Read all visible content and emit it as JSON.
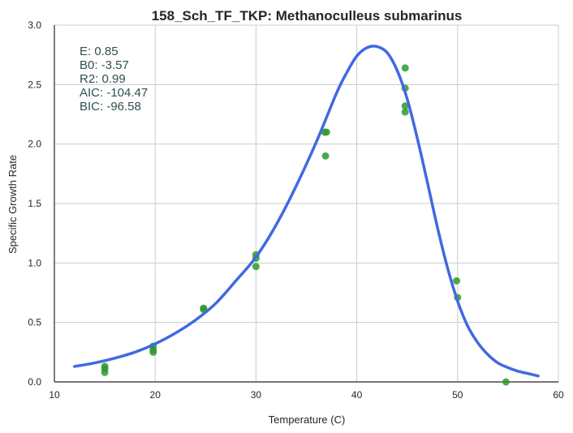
{
  "chart_data": {
    "type": "scatter",
    "title": "158_Sch_TF_TKP: Methanoculleus submarinus",
    "xlabel": "Temperature (C)",
    "ylabel": "Specific Growth Rate",
    "xlim": [
      10,
      60
    ],
    "ylim": [
      0,
      3.0
    ],
    "xticks": [
      10,
      20,
      30,
      40,
      50,
      60
    ],
    "xtick_labels": [
      "10",
      "20",
      "30",
      "40",
      "50",
      "60"
    ],
    "yticks": [
      0.0,
      0.5,
      1.0,
      1.5,
      2.0,
      2.5,
      3.0
    ],
    "ytick_labels": [
      "0.0",
      "0.5",
      "1.0",
      "1.5",
      "2.0",
      "2.5",
      "3.0"
    ],
    "grid": true,
    "stats": [
      "E:  0.85",
      "B0:  -3.57",
      "R2:  0.99",
      "AIC: -104.47",
      "BIC: -96.58"
    ],
    "series": [
      {
        "kind": "points",
        "color": "#2e9a2e",
        "x": [
          15,
          15,
          15,
          19.8,
          19.8,
          19.8,
          24.8,
          24.8,
          30,
          30,
          30,
          36.8,
          37,
          36.9,
          44.8,
          44.8,
          44.8,
          44.8,
          49.9,
          50,
          54.8
        ],
        "y": [
          0.13,
          0.11,
          0.08,
          0.3,
          0.27,
          0.25,
          0.62,
          0.61,
          1.07,
          1.04,
          0.97,
          2.1,
          2.1,
          1.9,
          2.64,
          2.47,
          2.32,
          2.27,
          0.85,
          0.71,
          0.0
        ]
      },
      {
        "kind": "line",
        "color": "#4169e1",
        "x": [
          12,
          14,
          16,
          18,
          20,
          22,
          24,
          26,
          28,
          30,
          32,
          34,
          36,
          38,
          39,
          40,
          41,
          42,
          43,
          44,
          45,
          46,
          47,
          48,
          49,
          50,
          51,
          52,
          53,
          54,
          55,
          56,
          57,
          58
        ],
        "y": [
          0.13,
          0.16,
          0.2,
          0.25,
          0.32,
          0.41,
          0.52,
          0.66,
          0.85,
          1.05,
          1.32,
          1.65,
          2.02,
          2.43,
          2.6,
          2.74,
          2.81,
          2.82,
          2.77,
          2.62,
          2.38,
          2.05,
          1.68,
          1.3,
          0.96,
          0.68,
          0.47,
          0.33,
          0.23,
          0.16,
          0.12,
          0.09,
          0.07,
          0.05
        ]
      }
    ]
  }
}
